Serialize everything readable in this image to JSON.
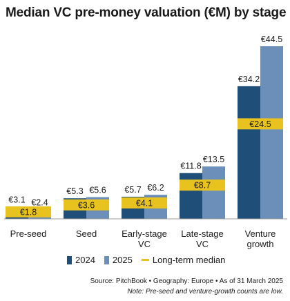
{
  "title": "Median VC pre-money valuation (€M) by stage",
  "colors": {
    "series_2024": "#1f4e79",
    "series_2025": "#6b8fb8",
    "median": "#e8c21e",
    "axis": "#9a9a9a"
  },
  "legend": {
    "series_2024": "2024",
    "series_2025": "2025",
    "median": "Long-term median"
  },
  "source": "Source: PitchBook  •  Geography: Europe  •  As of 31 March 2025",
  "note": "Note: Pre-seed and venture-growth counts are low.",
  "chart_data": {
    "type": "bar",
    "title": "Median VC pre-money valuation (€M) by stage",
    "categories": [
      [
        "Pre-seed"
      ],
      [
        "Seed"
      ],
      [
        "Early-stage",
        "VC"
      ],
      [
        "Late-stage",
        "VC"
      ],
      [
        "Venture",
        "growth"
      ]
    ],
    "series": [
      {
        "name": "2024",
        "values": [
          3.1,
          5.3,
          5.7,
          11.8,
          34.2
        ],
        "labels": [
          "€3.1",
          "€5.3",
          "€5.7",
          "€11.8",
          "€34.2"
        ]
      },
      {
        "name": "2025",
        "values": [
          2.4,
          5.6,
          6.2,
          13.5,
          44.5
        ],
        "labels": [
          "€2.4",
          "€5.6",
          "€6.2",
          "€13.5",
          "€44.5"
        ]
      }
    ],
    "median": {
      "name": "Long-term median",
      "values": [
        1.8,
        3.6,
        4.1,
        8.7,
        24.5
      ],
      "labels": [
        "€1.8",
        "€3.6",
        "€4.1",
        "€8.7",
        "€24.5"
      ]
    },
    "ylim": [
      0,
      45
    ],
    "legend_position": "bottom",
    "grid": false
  }
}
